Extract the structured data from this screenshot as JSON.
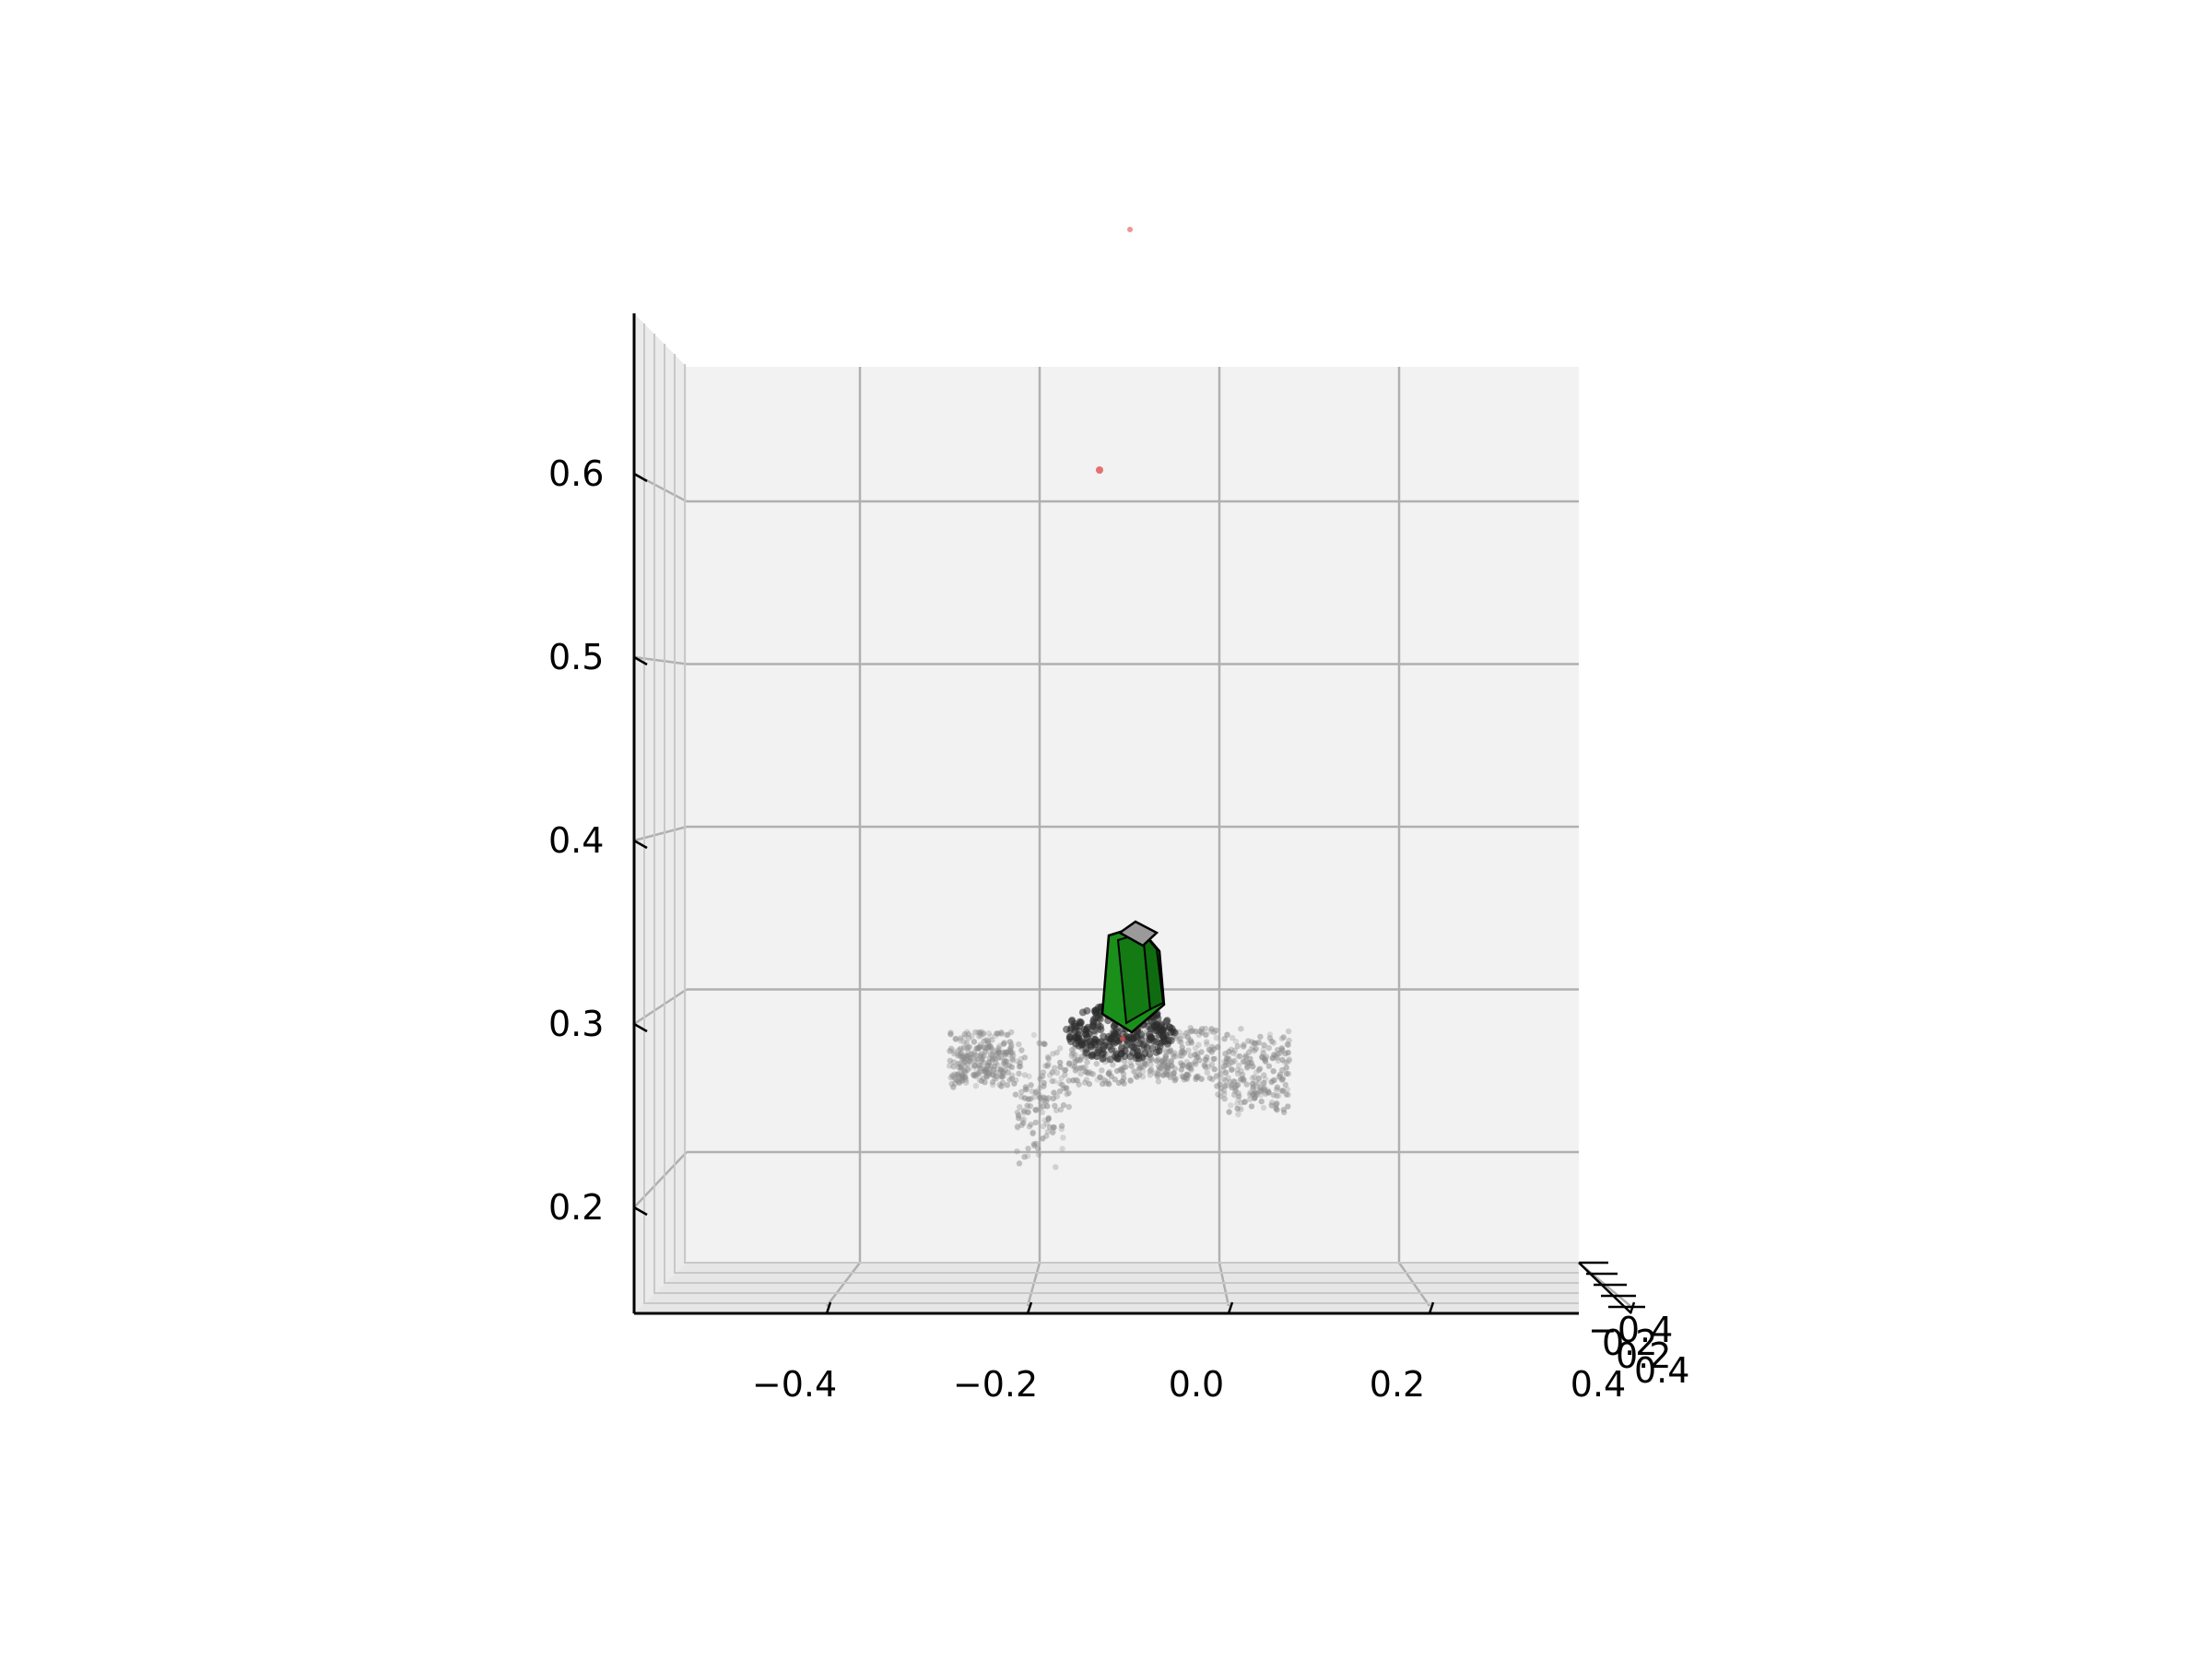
{
  "chart_data": {
    "type": "scatter",
    "projection": "3d",
    "view": "front orthographic-like (elevation ~0, looking along y)",
    "grid": true,
    "xlim": [
      -0.55,
      0.35
    ],
    "zlim": [
      0.14,
      0.66
    ],
    "x_ticks": [
      "−0.4",
      "−0.2",
      "0.0",
      "0.2",
      "0.4"
    ],
    "x_tick_values": [
      -0.4,
      -0.2,
      0.0,
      0.2,
      0.4
    ],
    "y_ticks_overlapping": [
      "−0.4",
      "0.2",
      "0.2",
      "0.4"
    ],
    "z_ticks": [
      "0.2",
      "0.3",
      "0.4",
      "0.5",
      "0.6"
    ],
    "z_tick_values": [
      0.2,
      0.3,
      0.4,
      0.5,
      0.6
    ],
    "colors": {
      "pane": "#f2f2f2",
      "grid": "#b0b0b0",
      "axis": "#000000",
      "cloud_light": "#8a8a8a",
      "cloud_dark": "#2b2b2b",
      "gripper_green": "#1a8f1a",
      "gripper_top": "#9a9a9a",
      "outlier_red": "#e05050"
    },
    "series": [
      {
        "kind": "point_cloud",
        "x_range": [
          -0.26,
          0.07
        ],
        "z_range": [
          0.25,
          0.32
        ]
      },
      {
        "kind": "outlier_points",
        "points": [
          [
            -0.12,
            0.6
          ],
          [
            -0.1,
            0.74
          ]
        ]
      },
      {
        "kind": "gripper_mesh",
        "x_center": -0.07,
        "z_range": [
          0.31,
          0.37
        ]
      }
    ]
  }
}
